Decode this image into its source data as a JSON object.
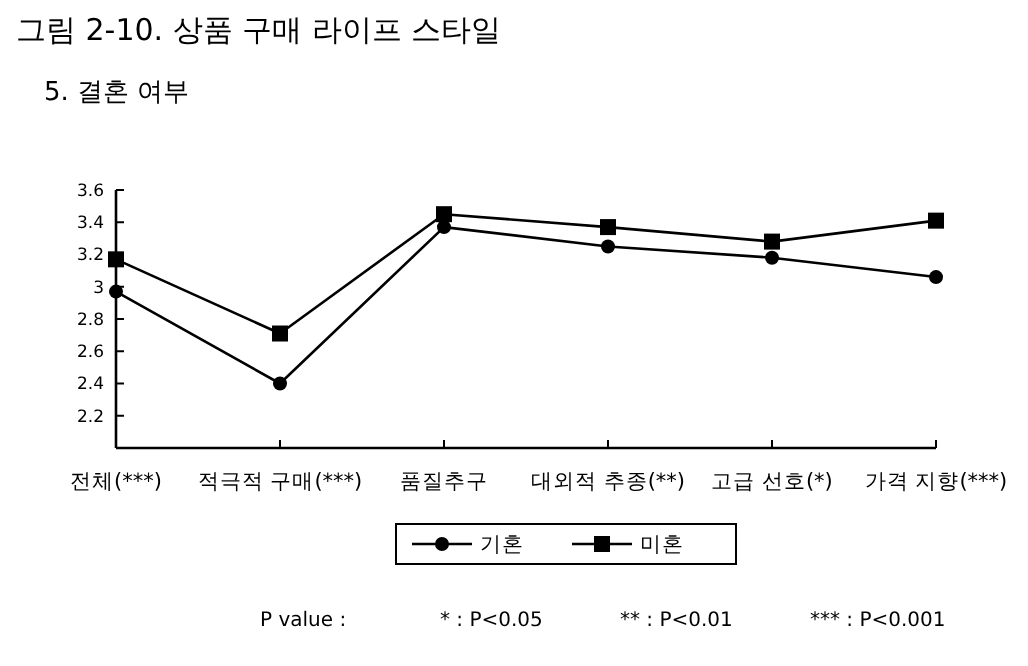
{
  "chart_data": {
    "type": "line",
    "title": "그림 2-10. 상품 구매 라이프 스타일",
    "subtitle": "5. 결혼 여부",
    "categories": [
      "전체(***)",
      "적극적 구매(***)",
      "품질추구",
      "대외적 추종(**)",
      "고급 선호(*)",
      "가격 지향(***)"
    ],
    "series": [
      {
        "name": "기혼",
        "color": "#000000",
        "marker": "circle",
        "values": [
          2.97,
          2.4,
          3.37,
          3.25,
          3.18,
          3.06
        ]
      },
      {
        "name": "미혼",
        "color": "#000000",
        "marker": "square",
        "values": [
          3.17,
          2.71,
          3.45,
          3.37,
          3.28,
          3.41
        ]
      }
    ],
    "ylim": [
      2,
      3.6
    ],
    "yticks": [
      {
        "value": 2,
        "label": null
      },
      2.2,
      2.4,
      2.6,
      2.8,
      3,
      3.2,
      3.4,
      3.6
    ],
    "grid": false,
    "legend": "bottom",
    "line_style": "solid",
    "annotations": [
      "P value :",
      "* : P<0.05",
      "** : P<0.01",
      "*** : P<0.001"
    ]
  }
}
